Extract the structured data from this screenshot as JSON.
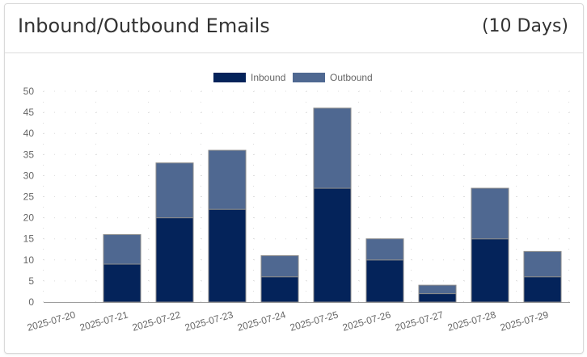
{
  "header": {
    "title": "Inbound/Outbound Emails",
    "range": "(10 Days)"
  },
  "colors": {
    "inbound": "#04235a",
    "outbound": "#4f6891",
    "grid": "#dcdcdc",
    "axis": "#9e9e9e"
  },
  "chart_data": {
    "type": "bar",
    "stacked": true,
    "categories": [
      "2025-07-20",
      "2025-07-21",
      "2025-07-22",
      "2025-07-23",
      "2025-07-24",
      "2025-07-25",
      "2025-07-26",
      "2025-07-27",
      "2025-07-28",
      "2025-07-29"
    ],
    "series": [
      {
        "name": "Inbound",
        "values": [
          0,
          9,
          20,
          22,
          6,
          27,
          10,
          2,
          15,
          6
        ]
      },
      {
        "name": "Outbound",
        "values": [
          0,
          7,
          13,
          14,
          5,
          19,
          5,
          2,
          12,
          6
        ]
      }
    ],
    "ylim": [
      0,
      50
    ],
    "yticks": [
      0,
      5,
      10,
      15,
      20,
      25,
      30,
      35,
      40,
      45,
      50
    ],
    "grid": "dotted",
    "legend": "top-center",
    "xlabel_rotation": "slanted"
  }
}
